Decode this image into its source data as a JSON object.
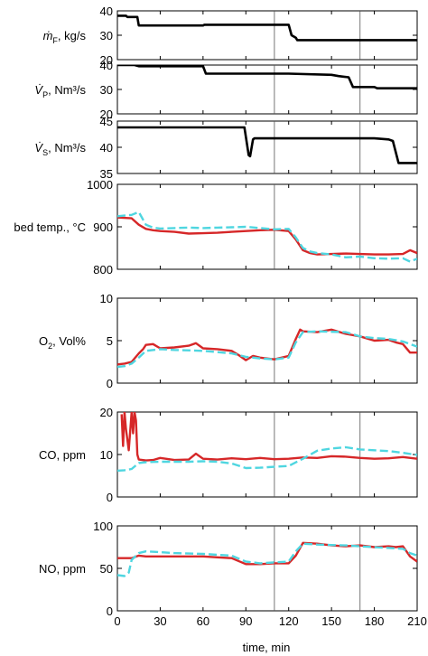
{
  "x_axis": {
    "label": "time, min",
    "range": [
      0,
      210
    ],
    "ticks": [
      0,
      30,
      60,
      90,
      120,
      150,
      180,
      210
    ]
  },
  "reference_lines_x": [
    110,
    170
  ],
  "colors": {
    "input": "#000000",
    "measured": "#d62728",
    "model": "#4fd6e0"
  },
  "chart_data": [
    {
      "type": "line",
      "ylabel_symbol": "ṁ",
      "ylabel_sub": "F",
      "ylabel_rest": ", kg/s",
      "ylim": [
        20,
        40
      ],
      "yticks": [
        20,
        30,
        40
      ],
      "series": [
        {
          "style": "input",
          "x": [
            0,
            6,
            7,
            14,
            15,
            60,
            61,
            120,
            122,
            125,
            126,
            210
          ],
          "y": [
            38,
            38,
            37.5,
            37.5,
            34,
            34,
            34.3,
            34.3,
            30,
            29,
            28,
            28
          ]
        }
      ]
    },
    {
      "type": "line",
      "ylabel_symbol": "V̇",
      "ylabel_sub": "P",
      "ylabel_rest": ", Nm³/s",
      "ylim": [
        20,
        40
      ],
      "yticks": [
        20,
        30,
        40
      ],
      "series": [
        {
          "style": "input",
          "x": [
            0,
            12,
            15,
            60,
            62,
            120,
            150,
            155,
            162,
            165,
            180,
            182,
            210
          ],
          "y": [
            40,
            40,
            39.5,
            39.5,
            36.5,
            36.5,
            36,
            35.5,
            35,
            31,
            31,
            30.5,
            30.5
          ]
        }
      ]
    },
    {
      "type": "line",
      "ylabel_symbol": "V̇",
      "ylabel_sub": "S",
      "ylabel_rest": ", Nm³/s",
      "ylim": [
        35,
        45
      ],
      "yticks": [
        35,
        40,
        45
      ],
      "series": [
        {
          "style": "input",
          "x": [
            0,
            89,
            90,
            92,
            93,
            95,
            96,
            180,
            190,
            193,
            197,
            198,
            210
          ],
          "y": [
            43.8,
            43.8,
            42,
            38.5,
            38.3,
            41.5,
            41.7,
            41.7,
            41.5,
            41.2,
            37,
            37,
            37
          ]
        }
      ]
    },
    {
      "type": "line",
      "ylabel": "bed temp., °C",
      "ylim": [
        800,
        1000
      ],
      "yticks": [
        800,
        900,
        1000
      ],
      "series": [
        {
          "style": "measured",
          "x": [
            0,
            10,
            15,
            20,
            25,
            30,
            40,
            50,
            60,
            70,
            80,
            90,
            100,
            110,
            120,
            125,
            130,
            135,
            140,
            150,
            160,
            170,
            180,
            190,
            200,
            205,
            210
          ],
          "y": [
            922,
            920,
            905,
            895,
            892,
            890,
            888,
            884,
            885,
            886,
            888,
            890,
            892,
            893,
            890,
            870,
            845,
            838,
            835,
            836,
            837,
            836,
            835,
            835,
            836,
            845,
            838
          ]
        },
        {
          "style": "model",
          "x": [
            0,
            10,
            15,
            20,
            25,
            30,
            40,
            50,
            60,
            70,
            80,
            90,
            100,
            110,
            120,
            125,
            130,
            135,
            140,
            150,
            160,
            170,
            180,
            190,
            200,
            205,
            210
          ],
          "y": [
            925,
            928,
            935,
            905,
            898,
            896,
            897,
            898,
            897,
            898,
            899,
            900,
            897,
            894,
            895,
            875,
            850,
            842,
            838,
            835,
            828,
            830,
            826,
            825,
            826,
            818,
            825
          ]
        }
      ]
    },
    {
      "type": "line",
      "ylabel_symbol": "O",
      "ylabel_sub": "2",
      "ylabel_rest": ", Vol%",
      "ylim": [
        0,
        10
      ],
      "yticks": [
        0,
        5,
        10
      ],
      "series": [
        {
          "style": "measured",
          "x": [
            0,
            5,
            10,
            15,
            18,
            20,
            25,
            30,
            40,
            50,
            55,
            60,
            70,
            80,
            85,
            90,
            95,
            100,
            110,
            120,
            125,
            128,
            130,
            140,
            150,
            160,
            170,
            180,
            190,
            195,
            200,
            205,
            210
          ],
          "y": [
            2.2,
            2.3,
            2.5,
            3.5,
            4.0,
            4.5,
            4.6,
            4.1,
            4.2,
            4.4,
            4.7,
            4.1,
            4.0,
            3.8,
            3.3,
            2.7,
            3.2,
            3.0,
            2.8,
            3.2,
            5.2,
            6.3,
            6.1,
            6.0,
            6.3,
            5.8,
            5.5,
            5.0,
            5.1,
            4.8,
            4.6,
            3.6,
            3.6
          ]
        },
        {
          "style": "model",
          "x": [
            0,
            5,
            10,
            15,
            20,
            30,
            40,
            60,
            80,
            90,
            100,
            110,
            120,
            125,
            130,
            140,
            160,
            170,
            180,
            190,
            200,
            210
          ],
          "y": [
            1.9,
            2.0,
            2.3,
            3.0,
            3.8,
            4.0,
            3.9,
            3.8,
            3.5,
            3.1,
            2.9,
            2.8,
            3.0,
            4.8,
            6.0,
            6.1,
            6.0,
            5.5,
            5.3,
            5.2,
            4.9,
            4.3
          ]
        }
      ]
    },
    {
      "type": "line",
      "ylabel": "CO, ppm",
      "ylim": [
        0,
        20
      ],
      "yticks": [
        0,
        10,
        20
      ],
      "series": [
        {
          "style": "measured",
          "x": [
            3,
            4,
            5,
            6,
            8,
            10,
            11,
            12,
            13,
            14,
            15,
            20,
            25,
            30,
            40,
            50,
            55,
            60,
            70,
            80,
            90,
            100,
            110,
            120,
            130,
            140,
            150,
            160,
            170,
            180,
            190,
            200,
            210
          ],
          "y": [
            19.5,
            12,
            20,
            16,
            11,
            20,
            15,
            20,
            18,
            10,
            8.8,
            8.6,
            8.7,
            9.2,
            8.7,
            8.8,
            10.2,
            9.0,
            8.8,
            9.1,
            8.9,
            9.2,
            8.9,
            9.0,
            9.3,
            9.2,
            9.6,
            9.5,
            9.2,
            9.0,
            9.1,
            9.4,
            9.0
          ]
        },
        {
          "style": "model",
          "x": [
            0,
            5,
            10,
            15,
            20,
            30,
            40,
            50,
            60,
            70,
            80,
            90,
            100,
            110,
            120,
            130,
            140,
            150,
            160,
            170,
            180,
            190,
            200,
            210
          ],
          "y": [
            6.2,
            6.3,
            6.6,
            8.0,
            8.2,
            8.3,
            8.3,
            8.3,
            8.4,
            8.3,
            7.9,
            6.8,
            6.9,
            7.1,
            7.3,
            9.0,
            10.9,
            11.4,
            11.7,
            11.2,
            11.0,
            10.8,
            10.4,
            9.9
          ]
        }
      ]
    },
    {
      "type": "line",
      "ylabel": "NO, ppm",
      "ylim": [
        0,
        100
      ],
      "yticks": [
        0,
        50,
        100
      ],
      "series": [
        {
          "style": "measured",
          "x": [
            0,
            5,
            10,
            15,
            20,
            30,
            40,
            50,
            60,
            70,
            80,
            90,
            95,
            100,
            110,
            120,
            125,
            130,
            140,
            150,
            160,
            170,
            180,
            190,
            195,
            200,
            205,
            210
          ],
          "y": [
            62,
            62,
            62,
            65,
            64,
            64,
            64,
            64,
            64,
            63,
            62,
            55,
            55,
            55,
            56,
            56,
            65,
            80,
            79,
            77,
            76,
            77,
            75,
            76,
            75,
            76,
            64,
            58
          ]
        },
        {
          "style": "model",
          "x": [
            0,
            5,
            8,
            10,
            15,
            20,
            30,
            40,
            60,
            80,
            90,
            100,
            110,
            120,
            125,
            130,
            140,
            160,
            170,
            180,
            190,
            200,
            205,
            210
          ],
          "y": [
            42,
            41,
            45,
            60,
            68,
            70,
            69,
            68,
            67,
            65,
            58,
            56,
            57,
            58,
            70,
            79,
            78,
            77,
            76,
            75,
            74,
            73,
            68,
            65
          ]
        }
      ]
    }
  ]
}
